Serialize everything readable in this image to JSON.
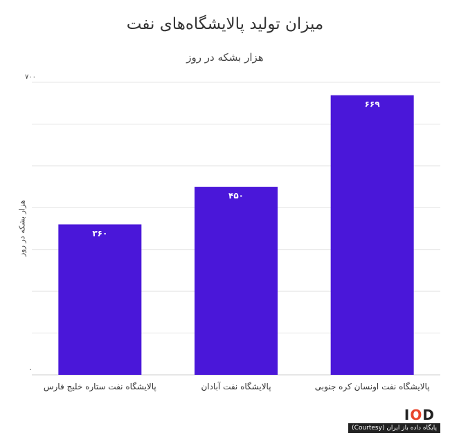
{
  "chart_data": {
    "type": "bar",
    "title": "میزان تولید پالایشگاه‌های نفت",
    "subtitle": "هزار بشکه در روز",
    "ylabel": "هزار بشکه در روز",
    "xlabel": "",
    "categories": [
      "پالایشگاه نفت ستاره خلیج فارس",
      "پالایشگاه نفت آبادان",
      "پالایشگاه نفت اونسان کره جنوبی"
    ],
    "values": [
      360,
      450,
      669
    ],
    "value_labels": [
      "۳۶۰",
      "۴۵۰",
      "۶۶۹"
    ],
    "ylim": [
      0,
      700
    ],
    "ytick_labels": [
      "۰",
      "۷۰۰"
    ],
    "grid": true,
    "bar_color": "#4a17d9"
  },
  "logo": {
    "text_i": "I",
    "text_o": "O",
    "text_d": "D"
  },
  "credit": "پایگاه داده باز ایران (Courtesy)"
}
